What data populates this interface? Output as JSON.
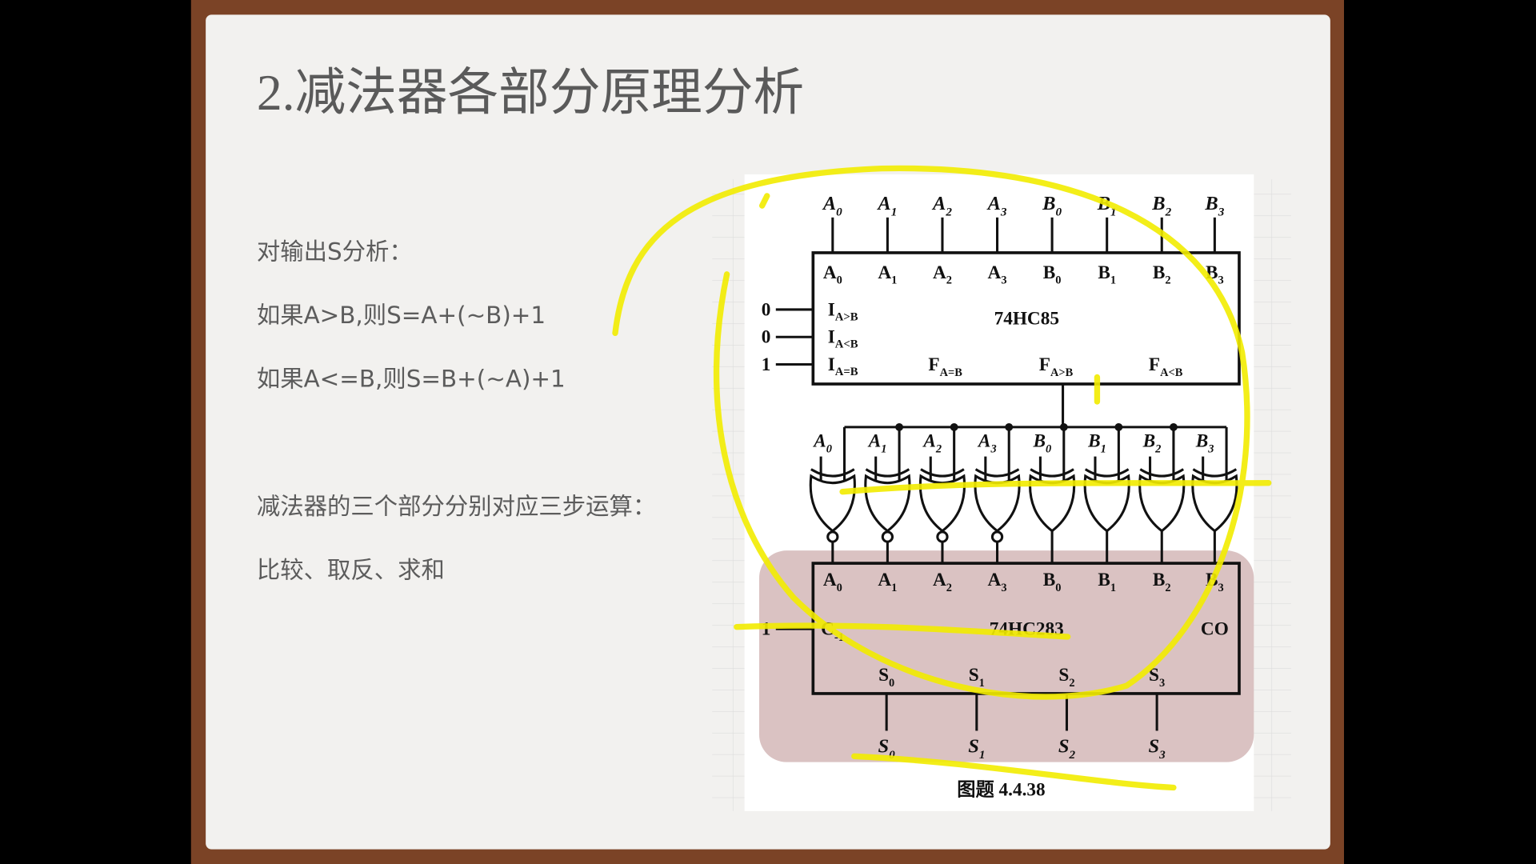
{
  "title": "2.减法器各部分原理分析",
  "body": [
    "对输出S分析：",
    "如果A>B,则S=A+(~B)+1",
    "如果A<=B,则S=B+(~A)+1",
    "减法器的三个部分分别对应三步运算：",
    "比较、取反、求和"
  ],
  "figure": {
    "inputs": [
      [
        "A",
        "0"
      ],
      [
        "A",
        "1"
      ],
      [
        "A",
        "2"
      ],
      [
        "A",
        "3"
      ],
      [
        "B",
        "0"
      ],
      [
        "B",
        "1"
      ],
      [
        "B",
        "2"
      ],
      [
        "B",
        "3"
      ]
    ],
    "comparator": {
      "name": "74HC85",
      "pins": [
        [
          "A",
          "0"
        ],
        [
          "A",
          "1"
        ],
        [
          "A",
          "2"
        ],
        [
          "A",
          "3"
        ],
        [
          "B",
          "0"
        ],
        [
          "B",
          "1"
        ],
        [
          "B",
          "2"
        ],
        [
          "B",
          "3"
        ]
      ],
      "cascade_inputs": [
        [
          "0",
          "I",
          "A>B"
        ],
        [
          "0",
          "I",
          "A<B"
        ],
        [
          "1",
          "I",
          "A=B"
        ]
      ],
      "outputs": [
        [
          "F",
          "A=B"
        ],
        [
          "F",
          "A>B"
        ],
        [
          "F",
          "A<B"
        ]
      ]
    },
    "gate_inputs": [
      [
        "A",
        "0"
      ],
      [
        "A",
        "1"
      ],
      [
        "A",
        "2"
      ],
      [
        "A",
        "3"
      ],
      [
        "B",
        "0"
      ],
      [
        "B",
        "1"
      ],
      [
        "B",
        "2"
      ],
      [
        "B",
        "3"
      ]
    ],
    "adder": {
      "name": "74HC283",
      "pins": [
        [
          "A",
          "0"
        ],
        [
          "A",
          "1"
        ],
        [
          "A",
          "2"
        ],
        [
          "A",
          "3"
        ],
        [
          "B",
          "0"
        ],
        [
          "B",
          "1"
        ],
        [
          "B",
          "2"
        ],
        [
          "B",
          "3"
        ]
      ],
      "carry_in": [
        "1",
        "C",
        "-1"
      ],
      "carry_out": "CO",
      "sum_pins": [
        [
          "S",
          "0"
        ],
        [
          "S",
          "1"
        ],
        [
          "S",
          "2"
        ],
        [
          "S",
          "3"
        ]
      ]
    },
    "outputs": [
      [
        "S",
        "0"
      ],
      [
        "S",
        "1"
      ],
      [
        "S",
        "2"
      ],
      [
        "S",
        "3"
      ]
    ],
    "caption": "图题 4.4.38"
  }
}
